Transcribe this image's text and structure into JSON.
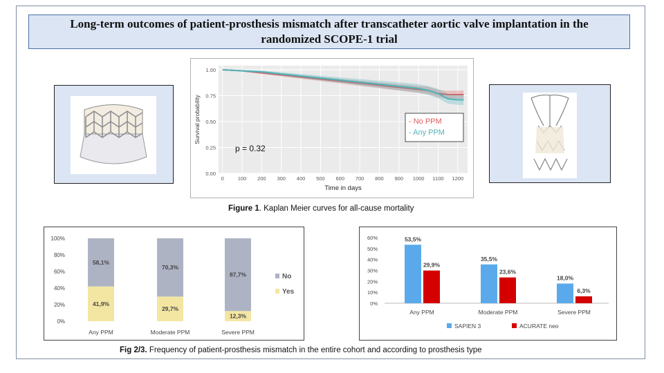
{
  "title": "Long-term outcomes of patient-prosthesis mismatch after transcatheter aortic valve implantation in the randomized SCOPE-1 trial",
  "figure1_caption": {
    "label": "Figure 1",
    "text": ". Kaplan Meier curves for all-cause mortality"
  },
  "figure23_caption": {
    "label": "Fig 2/3.",
    "text": " Frequency of patient-prosthesis mismatch in the entire cohort and according to prosthesis type"
  },
  "colors": {
    "no_ppm": "#e05a5a",
    "any_ppm": "#4fb3b8",
    "no_bar": "#aeb3c4",
    "yes_bar": "#f3e6a2",
    "sapien": "#5aaaeb",
    "acurate": "#d40000"
  },
  "chart_data": [
    {
      "type": "line",
      "xlabel": "Time in days",
      "ylabel": "Survival probability",
      "xlim": [
        -20,
        1250
      ],
      "ylim": [
        0,
        1.0
      ],
      "x_ticks": [
        "0",
        "100",
        "200",
        "300",
        "400",
        "500",
        "600",
        "700",
        "800",
        "900",
        "1000",
        "1100",
        "1200"
      ],
      "y_ticks": [
        "0.00",
        "0.25",
        "0.50",
        "0.75",
        "1.00"
      ],
      "annotation": "p = 0.32",
      "legend_position": "right",
      "series": [
        {
          "name": "- No PPM",
          "color": "#e05a5a",
          "x": [
            0,
            100,
            200,
            300,
            400,
            500,
            600,
            700,
            800,
            900,
            1000,
            1050,
            1100,
            1150,
            1200,
            1230
          ],
          "y": [
            1.0,
            0.99,
            0.97,
            0.95,
            0.93,
            0.91,
            0.89,
            0.87,
            0.85,
            0.83,
            0.81,
            0.8,
            0.77,
            0.76,
            0.76,
            0.76
          ]
        },
        {
          "name": "- Any PPM",
          "color": "#4fb3b8",
          "x": [
            0,
            100,
            200,
            300,
            400,
            500,
            600,
            700,
            800,
            900,
            1000,
            1050,
            1100,
            1150,
            1200,
            1230
          ],
          "y": [
            1.0,
            0.99,
            0.98,
            0.96,
            0.94,
            0.92,
            0.9,
            0.88,
            0.86,
            0.84,
            0.82,
            0.8,
            0.77,
            0.72,
            0.71,
            0.71
          ]
        }
      ]
    },
    {
      "type": "bar",
      "stacked": true,
      "categories": [
        "Any PPM",
        "Moderate PPM",
        "Severe PPM"
      ],
      "y_ticks": [
        "0%",
        "20%",
        "40%",
        "60%",
        "80%",
        "100%"
      ],
      "ylim": [
        0,
        100
      ],
      "legend_position": "right",
      "series": [
        {
          "name": "No",
          "color": "#aeb3c4",
          "values": [
            58.1,
            70.3,
            87.7
          ],
          "labels": [
            "58,1%",
            "70,3%",
            "87,7%"
          ]
        },
        {
          "name": "Yes",
          "color": "#f3e6a2",
          "values": [
            41.9,
            29.7,
            12.3
          ],
          "labels": [
            "41,9%",
            "29,7%",
            "12,3%"
          ]
        }
      ]
    },
    {
      "type": "bar",
      "categories": [
        "Any PPM",
        "Moderate PPM",
        "Severe PPM"
      ],
      "y_ticks": [
        "0%",
        "10%",
        "20%",
        "30%",
        "40%",
        "50%",
        "60%"
      ],
      "ylim": [
        0,
        60
      ],
      "legend_position": "bottom",
      "series": [
        {
          "name": "SAPIEN 3",
          "color": "#5aaaeb",
          "values": [
            53.5,
            35.5,
            18.0
          ],
          "labels": [
            "53,5%",
            "35,5%",
            "18,0%"
          ]
        },
        {
          "name": "ACURATE neo",
          "color": "#d40000",
          "values": [
            29.9,
            23.6,
            6.3
          ],
          "labels": [
            "29,9%",
            "23,6%",
            "6,3%"
          ]
        }
      ]
    }
  ]
}
